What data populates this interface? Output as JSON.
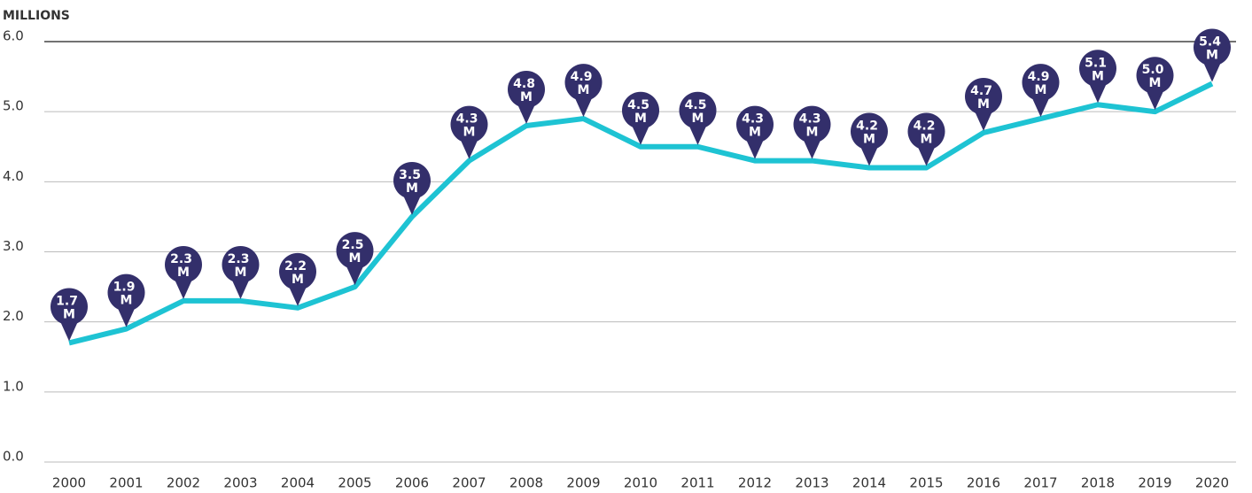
{
  "chart_data": {
    "type": "line",
    "y_axis_label": "MILLIONS",
    "categories": [
      "2000",
      "2001",
      "2002",
      "2003",
      "2004",
      "2005",
      "2006",
      "2007",
      "2008",
      "2009",
      "2010",
      "2011",
      "2012",
      "2013",
      "2014",
      "2015",
      "2016",
      "2017",
      "2018",
      "2019",
      "2020"
    ],
    "values": [
      1.7,
      1.9,
      2.3,
      2.3,
      2.2,
      2.5,
      3.5,
      4.3,
      4.8,
      4.9,
      4.5,
      4.5,
      4.3,
      4.3,
      4.2,
      4.2,
      4.7,
      4.9,
      5.1,
      5.0,
      5.4
    ],
    "value_labels": [
      "1.7 M",
      "1.9 M",
      "2.3 M",
      "2.3 M",
      "2.2 M",
      "2.5 M",
      "3.5 M",
      "4.3 M",
      "4.8 M",
      "4.9 M",
      "4.5 M",
      "4.5 M",
      "4.3 M",
      "4.3 M",
      "4.2 M",
      "4.2 M",
      "4.7 M",
      "4.9 M",
      "5.1 M",
      "5.0 M",
      "5.4 M"
    ],
    "color": "#1ec3d3",
    "label_color": "#332f6b",
    "ylim": [
      0,
      6
    ],
    "yticks": [
      {
        "value": 0,
        "label": "0.0"
      },
      {
        "value": 1,
        "label": "1.0"
      },
      {
        "value": 2,
        "label": "2.0"
      },
      {
        "value": 3,
        "label": "3.0"
      },
      {
        "value": 4,
        "label": "4.0"
      },
      {
        "value": 5,
        "label": "5.0"
      },
      {
        "value": 6,
        "label": "6.0"
      }
    ],
    "grid": true
  }
}
